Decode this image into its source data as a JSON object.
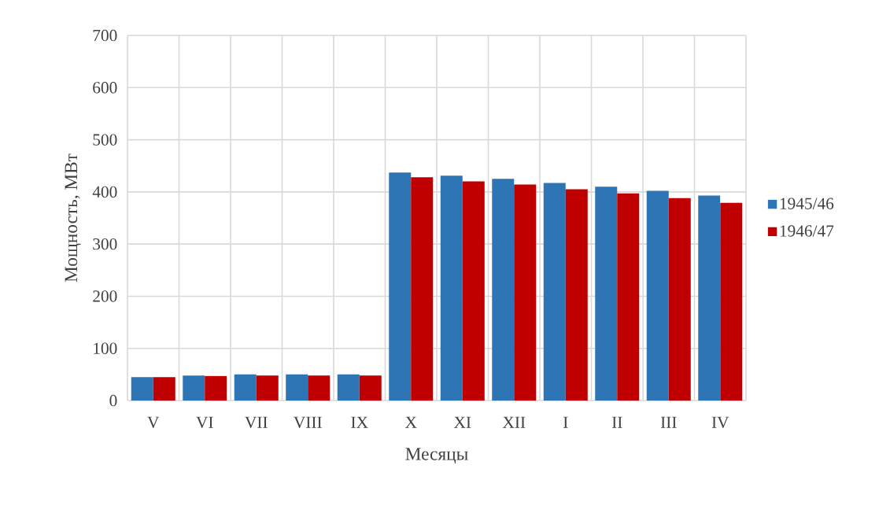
{
  "chart_data": {
    "type": "bar",
    "xlabel": "Месяцы",
    "ylabel": "Мощность, МВт",
    "categories": [
      "V",
      "VI",
      "VII",
      "VIII",
      "IX",
      "X",
      "XI",
      "XII",
      "I",
      "II",
      "III",
      "IV"
    ],
    "series": [
      {
        "name": "1945/46",
        "color": "#2e75b6",
        "values": [
          45,
          48,
          50,
          50,
          50,
          437,
          431,
          425,
          417,
          410,
          402,
          393
        ]
      },
      {
        "name": "1946/47",
        "color": "#c00000",
        "values": [
          45,
          47,
          48,
          48,
          48,
          428,
          420,
          414,
          405,
          397,
          388,
          379
        ]
      }
    ],
    "ylim": [
      0,
      700
    ],
    "yticks": [
      0,
      100,
      200,
      300,
      400,
      500,
      600,
      700
    ],
    "grid": true,
    "legend": "right"
  }
}
